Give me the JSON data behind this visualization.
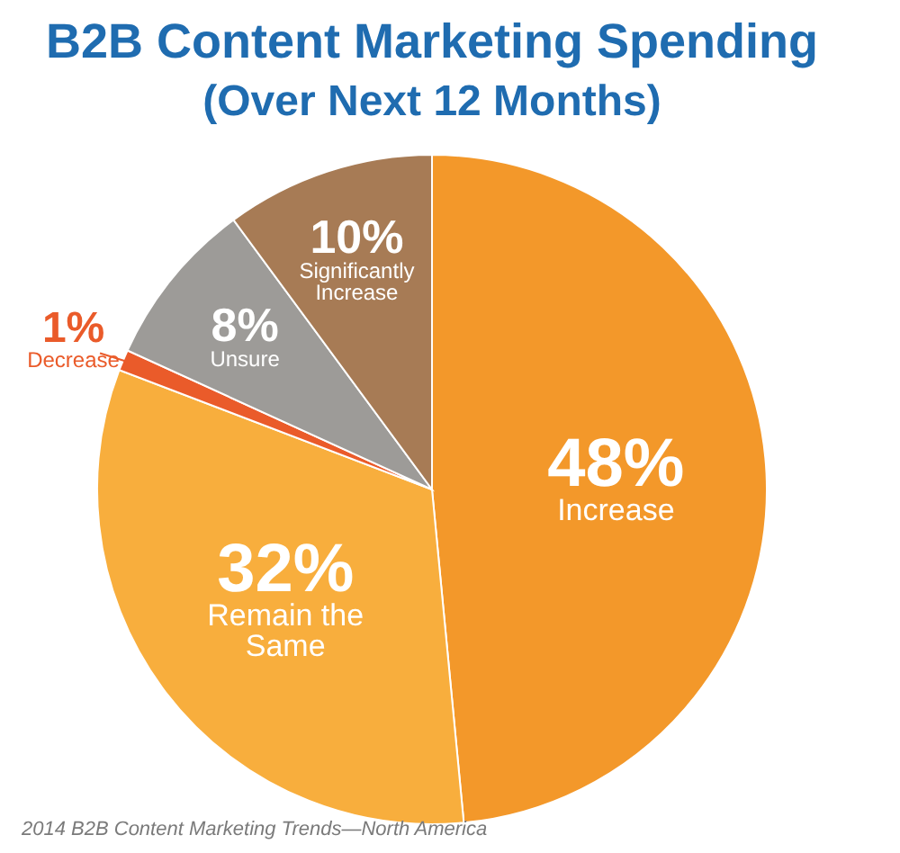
{
  "chart_data": {
    "type": "pie",
    "title": "B2B Content Marketing Spending",
    "subtitle": "(Over Next 12 Months)",
    "categories": [
      "Increase",
      "Remain the Same",
      "Decrease",
      "Unsure",
      "Significantly Increase"
    ],
    "values": [
      48,
      32,
      1,
      8,
      10
    ],
    "colors": [
      "#f3982a",
      "#f8ae3d",
      "#ea5b2a",
      "#9d9b98",
      "#a77b55"
    ],
    "value_labels": [
      "48%",
      "32%",
      "1%",
      "8%",
      "10%"
    ],
    "annotations": [
      "2014 B2B Content Marketing Trends—North America"
    ]
  }
}
